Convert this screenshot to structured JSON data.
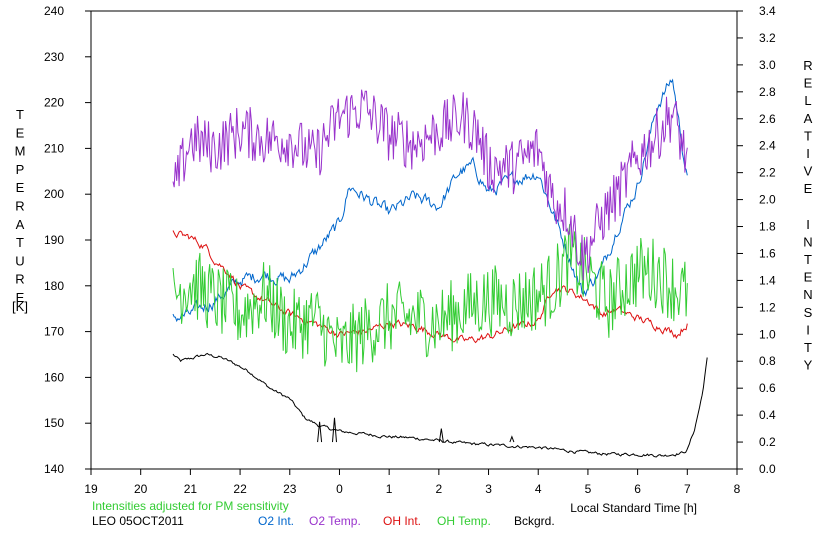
{
  "chart_data": {
    "type": "line",
    "xlabel": "Local Standard Time [h]",
    "x_ticks": [
      "19",
      "20",
      "21",
      "22",
      "23",
      "0",
      "1",
      "2",
      "3",
      "4",
      "5",
      "6",
      "7",
      "8"
    ],
    "xlim": [
      19,
      32
    ],
    "left_axis": {
      "label_letters": [
        "T",
        "E",
        "M",
        "P",
        "E",
        "R",
        "A",
        "T",
        "U",
        "R",
        "E"
      ],
      "unit": "[K]",
      "ylim": [
        140,
        240
      ],
      "ticks": [
        "140",
        "150",
        "160",
        "170",
        "180",
        "190",
        "200",
        "210",
        "220",
        "230",
        "240"
      ]
    },
    "right_axis": {
      "label_letters": [
        "R",
        "E",
        "L",
        "A",
        "T",
        "I",
        "V",
        "E",
        "I",
        "N",
        "T",
        "E",
        "N",
        "S",
        "I",
        "T",
        "Y"
      ],
      "ylim": [
        0.0,
        3.4
      ],
      "ticks": [
        "0.0",
        "0.2",
        "0.4",
        "0.6",
        "0.8",
        "1.0",
        "1.2",
        "1.4",
        "1.6",
        "1.8",
        "2.0",
        "2.2",
        "2.4",
        "2.6",
        "2.8",
        "3.0",
        "3.2",
        "3.4"
      ]
    },
    "note": "Intensities adjusted for PM sensitivity",
    "station": "LEO 05OCT2011",
    "grid": false,
    "series": [
      {
        "name": "O2 Int.",
        "axis": "right",
        "color": "#0066cc",
        "noise": 0.05,
        "x": [
          20.65,
          21.0,
          21.5,
          22.0,
          22.5,
          23.0,
          23.5,
          24.0,
          24.2,
          24.5,
          25.0,
          25.5,
          26.0,
          26.4,
          26.7,
          27.0,
          27.5,
          28.0,
          28.3,
          28.6,
          28.9,
          29.3,
          29.6,
          30.0,
          30.4,
          30.7,
          31.0
        ],
        "y": [
          1.12,
          1.15,
          1.25,
          1.4,
          1.45,
          1.4,
          1.6,
          1.82,
          2.1,
          2.02,
          1.9,
          2.02,
          1.95,
          2.2,
          2.25,
          2.05,
          2.15,
          2.2,
          1.9,
          1.6,
          1.3,
          1.5,
          1.8,
          2.1,
          2.7,
          2.9,
          2.15
        ]
      },
      {
        "name": "O2 Temp.",
        "axis": "left",
        "color": "#9933cc",
        "noise": 6,
        "x": [
          20.65,
          21.0,
          21.5,
          22.0,
          22.5,
          23.0,
          23.5,
          24.0,
          24.5,
          25.0,
          25.5,
          26.0,
          26.5,
          26.8,
          27.0,
          27.5,
          28.0,
          28.3,
          28.6,
          28.9,
          29.3,
          29.6,
          30.0,
          30.4,
          30.7,
          31.0
        ],
        "y": [
          200,
          212,
          210,
          214,
          212,
          212,
          208,
          217,
          219,
          213,
          211,
          214,
          217,
          213,
          206,
          206,
          210,
          199,
          196,
          186,
          195,
          200,
          208,
          213,
          218,
          207
        ]
      },
      {
        "name": "OH Int.",
        "axis": "right",
        "color": "#dd1111",
        "noise": 0.03,
        "x": [
          20.65,
          21.0,
          21.3,
          21.5,
          21.8,
          22.0,
          22.5,
          23.0,
          23.5,
          24.0,
          24.5,
          25.0,
          25.5,
          26.0,
          26.5,
          27.0,
          27.5,
          28.0,
          28.3,
          28.6,
          29.0,
          29.3,
          29.6,
          30.0,
          30.5,
          30.8,
          31.0
        ],
        "y": [
          1.75,
          1.72,
          1.65,
          1.55,
          1.45,
          1.35,
          1.25,
          1.15,
          1.08,
          1.0,
          1.02,
          1.08,
          1.06,
          1.0,
          0.95,
          0.98,
          1.05,
          1.1,
          1.35,
          1.33,
          1.25,
          1.15,
          1.18,
          1.12,
          1.05,
          1.0,
          1.08
        ]
      },
      {
        "name": "OH Temp.",
        "axis": "left",
        "color": "#33cc33",
        "noise": 8,
        "x": [
          20.65,
          21.0,
          21.5,
          22.0,
          22.5,
          23.0,
          23.5,
          24.0,
          24.5,
          25.0,
          25.5,
          26.0,
          26.5,
          27.0,
          27.5,
          28.0,
          28.3,
          28.6,
          29.0,
          29.4,
          29.7,
          30.0,
          30.4,
          30.7,
          31.0
        ],
        "y": [
          178,
          181,
          177,
          174,
          178,
          171,
          173,
          166,
          170,
          173,
          173,
          172,
          175,
          177,
          176,
          178,
          180,
          186,
          182,
          176,
          180,
          183,
          183,
          180,
          178
        ]
      },
      {
        "name": "Bckgrd.",
        "axis": "right",
        "color": "#000000",
        "noise": 0.012,
        "x": [
          20.65,
          20.8,
          21.0,
          21.3,
          21.6,
          21.9,
          22.2,
          22.6,
          23.0,
          23.3,
          23.6,
          24.0,
          24.5,
          25.0,
          25.5,
          26.0,
          26.5,
          27.0,
          27.5,
          28.0,
          28.5,
          29.0,
          29.5,
          30.0,
          30.5,
          30.9,
          31.0,
          31.15,
          31.3,
          31.4
        ],
        "y": [
          0.85,
          0.8,
          0.82,
          0.85,
          0.83,
          0.78,
          0.72,
          0.6,
          0.52,
          0.38,
          0.32,
          0.28,
          0.26,
          0.24,
          0.23,
          0.21,
          0.19,
          0.18,
          0.17,
          0.16,
          0.14,
          0.12,
          0.11,
          0.11,
          0.1,
          0.12,
          0.14,
          0.3,
          0.55,
          0.82
        ]
      }
    ],
    "spikes": [
      {
        "series": "Bckgrd.",
        "x": 23.6,
        "y": 0.35
      },
      {
        "series": "Bckgrd.",
        "x": 23.9,
        "y": 0.38
      },
      {
        "series": "Bckgrd.",
        "x": 26.05,
        "y": 0.3
      },
      {
        "series": "Bckgrd.",
        "x": 27.47,
        "y": 0.24
      }
    ]
  }
}
